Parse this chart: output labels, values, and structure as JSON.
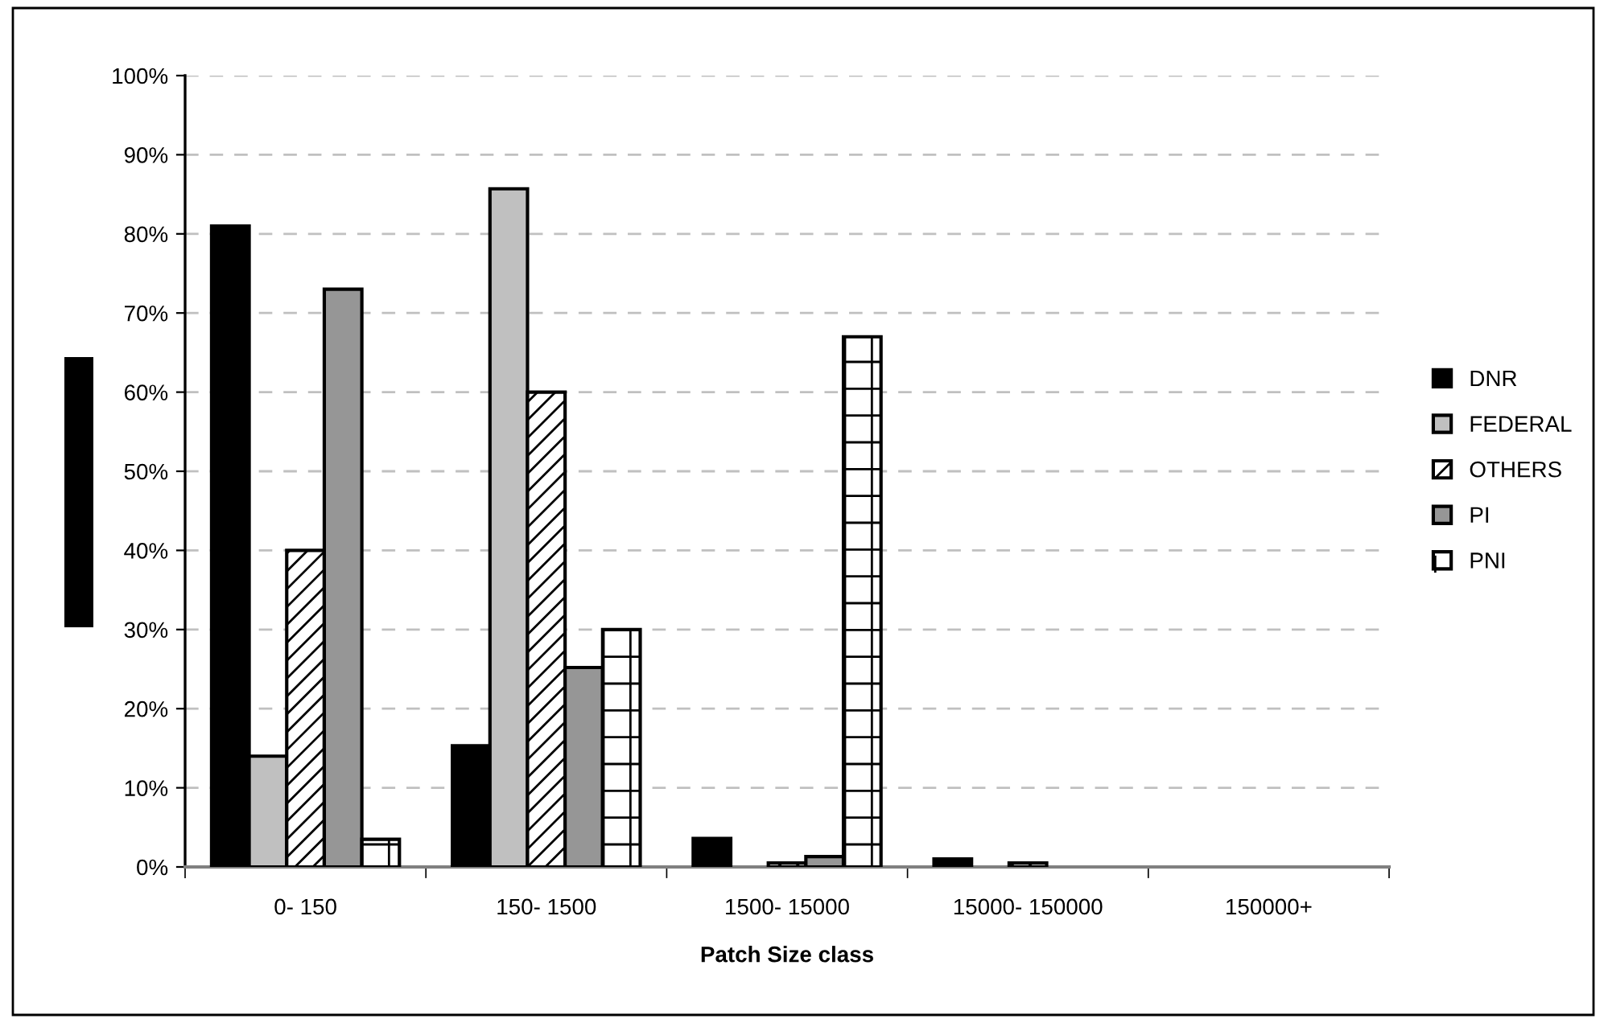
{
  "chart_data": {
    "type": "bar",
    "xlabel": "Patch Size class",
    "categories": [
      "0- 150",
      "150- 1500",
      "1500- 15000",
      "15000- 150000",
      "150000+"
    ],
    "series": [
      {
        "name": "DNR",
        "color": "#000000",
        "values": [
          81,
          15.3,
          3.6,
          1.0,
          null
        ]
      },
      {
        "name": "FEDERAL",
        "color": "#c0c0c0",
        "values": [
          14,
          85.7,
          null,
          null,
          null
        ]
      },
      {
        "name": "OTHERS",
        "color": "#ffffff",
        "values": [
          40,
          60,
          0.5,
          0.5,
          null
        ]
      },
      {
        "name": "PI",
        "color": "#969696",
        "values": [
          73,
          25.2,
          1.3,
          null,
          null
        ]
      },
      {
        "name": "PNI",
        "color": "#ffffff",
        "values": [
          3.5,
          30,
          67,
          null,
          null
        ]
      }
    ],
    "ylim": [
      0,
      100
    ],
    "yticks": [
      {
        "value": 0,
        "label": "0%"
      },
      {
        "value": 10,
        "label": "10%"
      },
      {
        "value": 20,
        "label": "20%"
      },
      {
        "value": 30,
        "label": "30%"
      },
      {
        "value": 40,
        "label": "40%"
      },
      {
        "value": 50,
        "label": "50%"
      },
      {
        "value": 60,
        "label": "60%"
      },
      {
        "value": 70,
        "label": "70%"
      },
      {
        "value": 80,
        "label": "80%"
      },
      {
        "value": 90,
        "label": "90%"
      },
      {
        "value": 100,
        "label": "100%"
      }
    ],
    "grid": "y",
    "legend": "right"
  }
}
